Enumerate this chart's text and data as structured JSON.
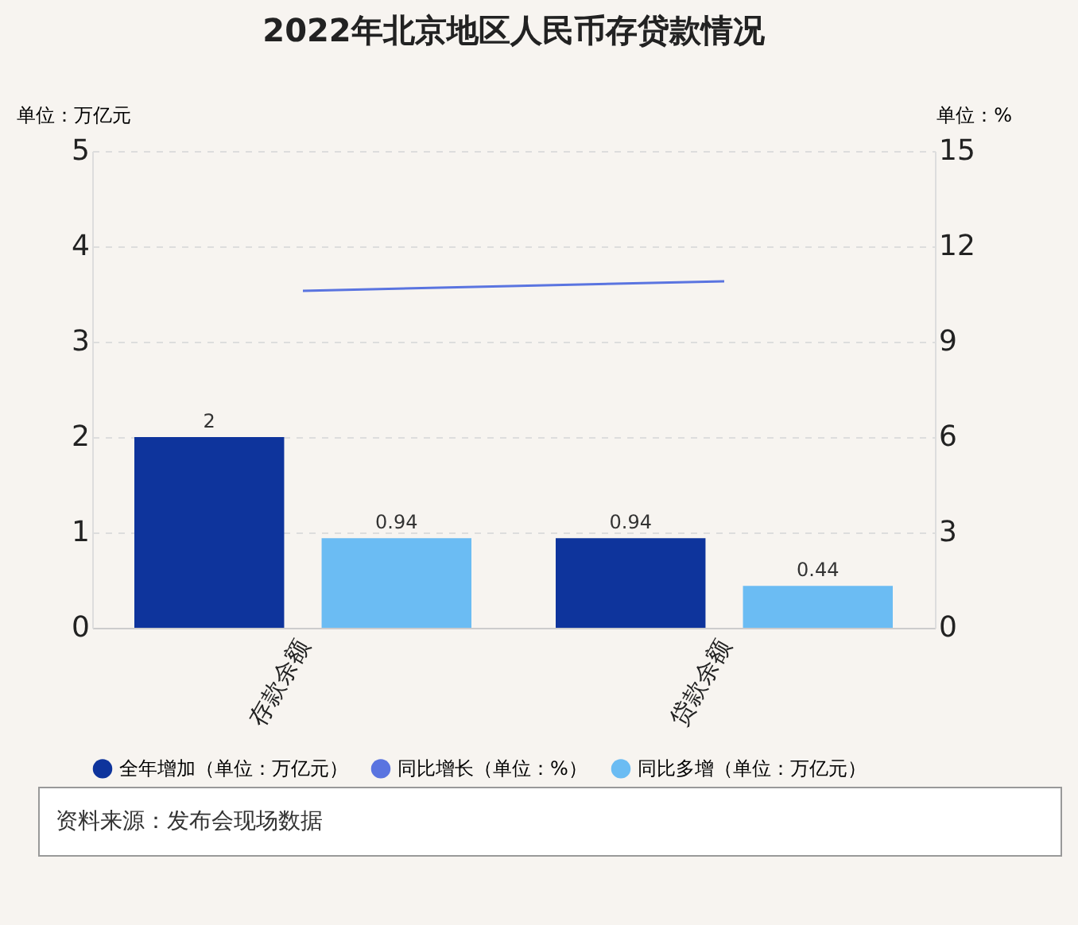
{
  "chart_data": {
    "type": "bar",
    "title": "2022年北京地区人民币存贷款情况",
    "ylabel": "单位：万亿元",
    "y2label": "单位：%",
    "categories": [
      "存款余额",
      "贷款余额"
    ],
    "series": [
      {
        "name": "全年增加（单位：万亿元）",
        "type": "bar",
        "color": "#0e349c",
        "values": [
          2,
          0.94
        ],
        "value_labels": [
          "2",
          "0.94"
        ]
      },
      {
        "name": "同比增长（单位：%）",
        "type": "line",
        "axis": "y2",
        "color": "#5a74e0",
        "values": [
          10.6,
          10.9
        ]
      },
      {
        "name": "同比多增（单位：万亿元）",
        "type": "bar",
        "color": "#6bbcf3",
        "values": [
          0.94,
          0.44
        ],
        "value_labels": [
          "0.94",
          "0.44"
        ]
      }
    ],
    "ylim": [
      0,
      5
    ],
    "yticks": [
      0,
      1,
      2,
      3,
      4,
      5
    ],
    "y2lim": [
      0,
      15
    ],
    "y2ticks": [
      0,
      3,
      6,
      9,
      12,
      15
    ],
    "grid": "y",
    "legend": "bottom",
    "marker": "none",
    "annotations": [
      "资料来源：发布会现场数据"
    ]
  }
}
